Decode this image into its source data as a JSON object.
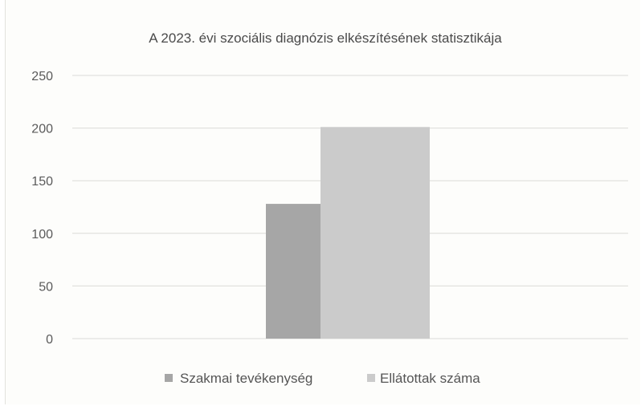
{
  "chart_data": {
    "type": "bar",
    "title": "A 2023. évi szociális diagnózis elkészítésének statisztikája",
    "categories": [
      ""
    ],
    "series": [
      {
        "name": "Szakmai tevékenység",
        "values": [
          128
        ],
        "color": "#a6a6a6"
      },
      {
        "name": "Ellátottak száma",
        "values": [
          201
        ],
        "color": "#cbcbcb"
      }
    ],
    "ylim": [
      0,
      250
    ],
    "yticks": [
      "250",
      "200",
      "150",
      "100",
      "50",
      "0"
    ],
    "grid": true,
    "legend_position": "bottom"
  }
}
